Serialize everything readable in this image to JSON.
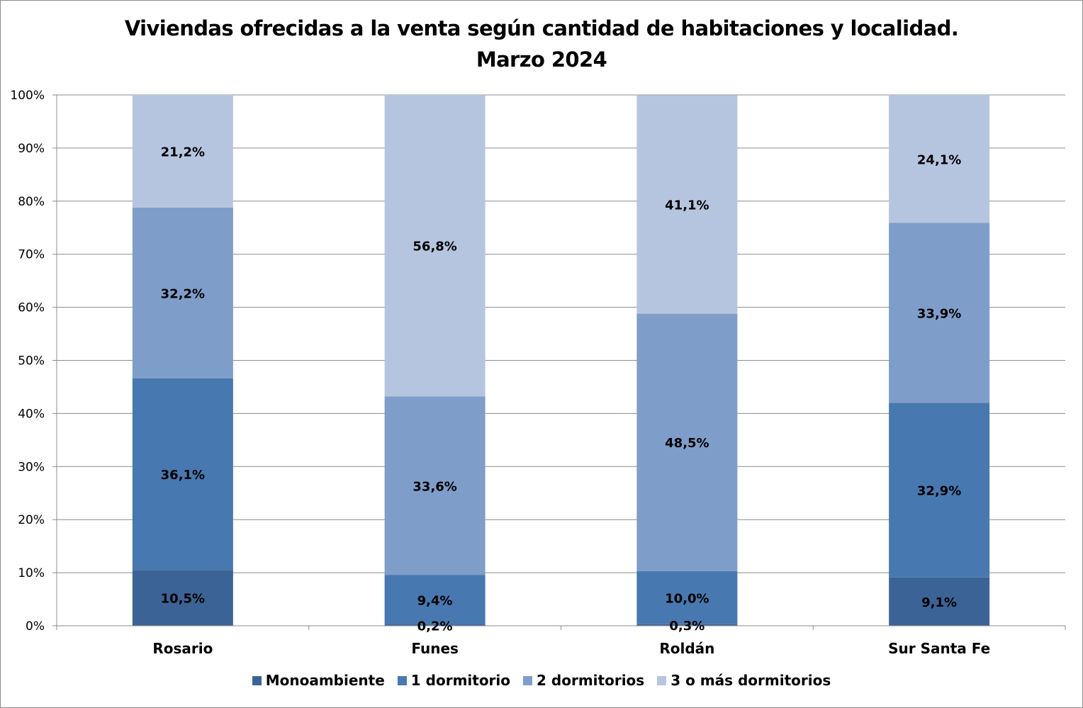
{
  "chart_data": {
    "type": "bar",
    "stacked": true,
    "title": "Viviendas ofrecidas a la venta según cantidad de habitaciones y localidad.",
    "subtitle": "Marzo 2024",
    "categories": [
      "Rosario",
      "Funes",
      "Roldán",
      "Sur Santa Fe"
    ],
    "ylim": [
      0,
      100
    ],
    "yticks": [
      "0%",
      "10%",
      "20%",
      "30%",
      "40%",
      "50%",
      "60%",
      "70%",
      "80%",
      "90%",
      "100%"
    ],
    "grid": true,
    "legend_position": "bottom",
    "series": [
      {
        "name": "Monoambiente",
        "color": "#3C6396",
        "values": [
          10.5,
          0.2,
          0.3,
          9.1
        ],
        "labels": [
          "10,5%",
          "0,2%",
          "0,3%",
          "9,1%"
        ]
      },
      {
        "name": "1 dormitorio",
        "color": "#4878B0",
        "values": [
          36.1,
          9.4,
          10.0,
          32.9
        ],
        "labels": [
          "36,1%",
          "9,4%",
          "10,0%",
          "32,9%"
        ]
      },
      {
        "name": "2 dormitorios",
        "color": "#7F9DC9",
        "values": [
          32.2,
          33.6,
          48.5,
          33.9
        ],
        "labels": [
          "32,2%",
          "33,6%",
          "48,5%",
          "33,9%"
        ]
      },
      {
        "name": "3 o más dormitorios",
        "color": "#B6C5DF",
        "values": [
          21.2,
          56.8,
          41.1,
          24.1
        ],
        "labels": [
          "21,2%",
          "56,8%",
          "41,1%",
          "24,1%"
        ]
      }
    ]
  }
}
